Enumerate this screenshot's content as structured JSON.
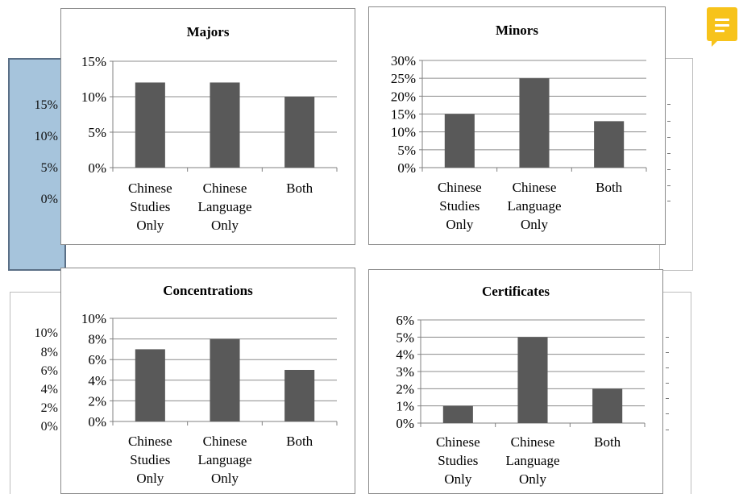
{
  "background_slide": {
    "left_top_ticks": [
      "15%",
      "10%",
      "5%",
      "0%"
    ],
    "left_bottom_ticks": [
      "10%",
      "8%",
      "6%",
      "4%",
      "2%",
      "0%"
    ]
  },
  "colors": {
    "bar": "#595959",
    "axis": "#808080",
    "grid": "#8c8c8c",
    "note_icon": "#f7c31b"
  },
  "note_icon": "comment-note-icon",
  "chart_data": [
    {
      "type": "bar",
      "title": "Majors",
      "categories": [
        [
          "Chinese",
          "Studies",
          "Only"
        ],
        [
          "Chinese",
          "Language",
          "Only"
        ],
        [
          "Both"
        ]
      ],
      "values": [
        12,
        12,
        10
      ],
      "yticks": [
        "0%",
        "5%",
        "10%",
        "15%"
      ],
      "ylim": [
        0,
        15
      ],
      "grid": true
    },
    {
      "type": "bar",
      "title": "Minors",
      "categories": [
        [
          "Chinese",
          "Studies",
          "Only"
        ],
        [
          "Chinese",
          "Language",
          "Only"
        ],
        [
          "Both"
        ]
      ],
      "values": [
        15,
        25,
        13
      ],
      "yticks": [
        "0%",
        "5%",
        "10%",
        "15%",
        "20%",
        "25%",
        "30%"
      ],
      "ylim": [
        0,
        30
      ],
      "grid": true
    },
    {
      "type": "bar",
      "title": "Concentrations",
      "categories": [
        [
          "Chinese",
          "Studies",
          "Only"
        ],
        [
          "Chinese",
          "Language",
          "Only"
        ],
        [
          "Both"
        ]
      ],
      "values": [
        7,
        8,
        5
      ],
      "yticks": [
        "0%",
        "2%",
        "4%",
        "6%",
        "8%",
        "10%"
      ],
      "ylim": [
        0,
        10
      ],
      "grid": true
    },
    {
      "type": "bar",
      "title": "Certificates",
      "categories": [
        [
          "Chinese",
          "Studies",
          "Only"
        ],
        [
          "Chinese",
          "Language",
          "Only"
        ],
        [
          "Both"
        ]
      ],
      "values": [
        1,
        5,
        2
      ],
      "yticks": [
        "0%",
        "1%",
        "2%",
        "3%",
        "4%",
        "5%",
        "6%"
      ],
      "ylim": [
        0,
        6
      ],
      "grid": true
    }
  ]
}
